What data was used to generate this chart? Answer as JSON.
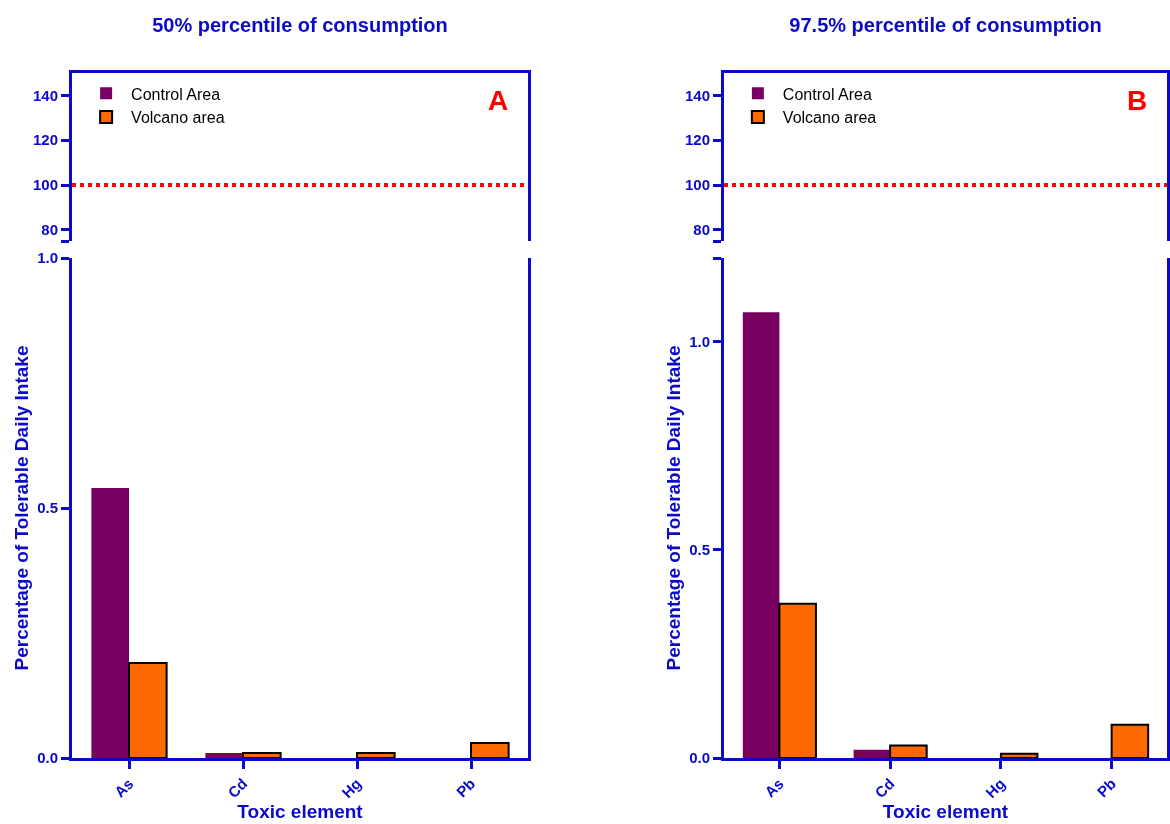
{
  "chart_data": [
    {
      "type": "bar",
      "title": "50% percentile of consumption",
      "series": [
        {
          "name": "Control Area",
          "color": "#780060",
          "values": [
            null,
            null,
            null,
            null
          ]
        },
        {
          "name": "Volcano area",
          "color": "#ff6a00",
          "values": [
            null,
            null,
            null,
            null
          ]
        }
      ],
      "ylim": [
        75,
        150
      ],
      "yticks": [
        {
          "value": 75,
          "label": null
        },
        80,
        100,
        120,
        140
      ],
      "ref_lines": [
        {
          "axis": "y",
          "value": 100,
          "color": "#ff0000",
          "line_style": "dotted"
        }
      ],
      "legend": "top left",
      "annotations": [
        "A"
      ],
      "tick_labels": "y"
    },
    {
      "type": "bar",
      "xlabel": "Toxic element",
      "ylabel": "Percentage of Tolerable Daily Intake",
      "categories": [
        "As",
        "Cd",
        "Hg",
        "Pb"
      ],
      "series": [
        {
          "color": "#780060",
          "values": [
            0.54,
            0.01,
            0,
            0
          ]
        },
        {
          "color": "#ff6a00",
          "values": [
            0.19,
            0.01,
            0.01,
            0.03
          ]
        }
      ],
      "ylim": [
        0,
        1
      ],
      "yticks": [
        {
          "value": 0,
          "label": "0.0"
        },
        0.5,
        {
          "value": 1,
          "label": "1.0"
        }
      ]
    },
    {
      "type": "bar",
      "title": "97.5% percentile of consumption",
      "series": [
        {
          "name": "Control Area",
          "color": "#780060",
          "values": [
            null,
            null,
            null,
            null
          ]
        },
        {
          "name": "Volcano area",
          "color": "#ff6a00",
          "values": [
            null,
            null,
            null,
            null
          ]
        }
      ],
      "ylim": [
        75,
        150
      ],
      "yticks": [
        {
          "value": 75,
          "label": null
        },
        80,
        100,
        120,
        140
      ],
      "ref_lines": [
        {
          "axis": "y",
          "value": 100,
          "color": "#ff0000",
          "line_style": "dotted"
        }
      ],
      "legend": "top left",
      "annotations": [
        "B"
      ],
      "tick_labels": "y"
    },
    {
      "type": "bar",
      "xlabel": "Toxic element",
      "ylabel": "Percentage of Tolerable Daily Intake",
      "categories": [
        "As",
        "Cd",
        "Hg",
        "Pb"
      ],
      "series": [
        {
          "color": "#780060",
          "values": [
            1.07,
            0.02,
            0,
            0
          ]
        },
        {
          "color": "#ff6a00",
          "values": [
            0.37,
            0.03,
            0.01,
            0.08
          ]
        }
      ],
      "ylim": [
        0,
        1.2
      ],
      "yticks": [
        {
          "value": 0,
          "label": "0.0"
        },
        0.5,
        {
          "value": 1,
          "label": "1.0"
        },
        {
          "value": 1.2,
          "label": null
        }
      ]
    }
  ]
}
